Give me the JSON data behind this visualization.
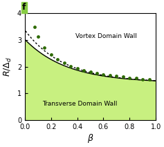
{
  "xlabel": "β",
  "ylabel": "R/Δ_d",
  "xlim": [
    0.0,
    1.0
  ],
  "ylim": [
    0.0,
    4.0
  ],
  "xticks": [
    0.0,
    0.2,
    0.4,
    0.6,
    0.8,
    1.0
  ],
  "yticks": [
    0,
    1,
    2,
    3,
    4
  ],
  "fill_color": "#c8f080",
  "solid_line_color": "#000000",
  "dotted_line_color": "#000000",
  "dot_color": "#2d6a00",
  "label_vortex": "Vortex Domain Wall",
  "label_transverse": "Transverse Domain Wall",
  "panel_label": "f",
  "scatter_points": [
    [
      0.075,
      3.48
    ],
    [
      0.1,
      3.12
    ],
    [
      0.15,
      2.72
    ],
    [
      0.2,
      2.45
    ],
    [
      0.25,
      2.28
    ],
    [
      0.3,
      2.14
    ],
    [
      0.35,
      2.03
    ],
    [
      0.4,
      1.95
    ],
    [
      0.45,
      1.87
    ],
    [
      0.5,
      1.81
    ],
    [
      0.55,
      1.76
    ],
    [
      0.6,
      1.72
    ],
    [
      0.65,
      1.68
    ],
    [
      0.7,
      1.65
    ],
    [
      0.75,
      1.62
    ],
    [
      0.8,
      1.59
    ],
    [
      0.85,
      1.57
    ],
    [
      0.9,
      1.54
    ],
    [
      0.95,
      1.52
    ]
  ],
  "figsize": [
    2.37,
    2.13
  ],
  "dpi": 100
}
